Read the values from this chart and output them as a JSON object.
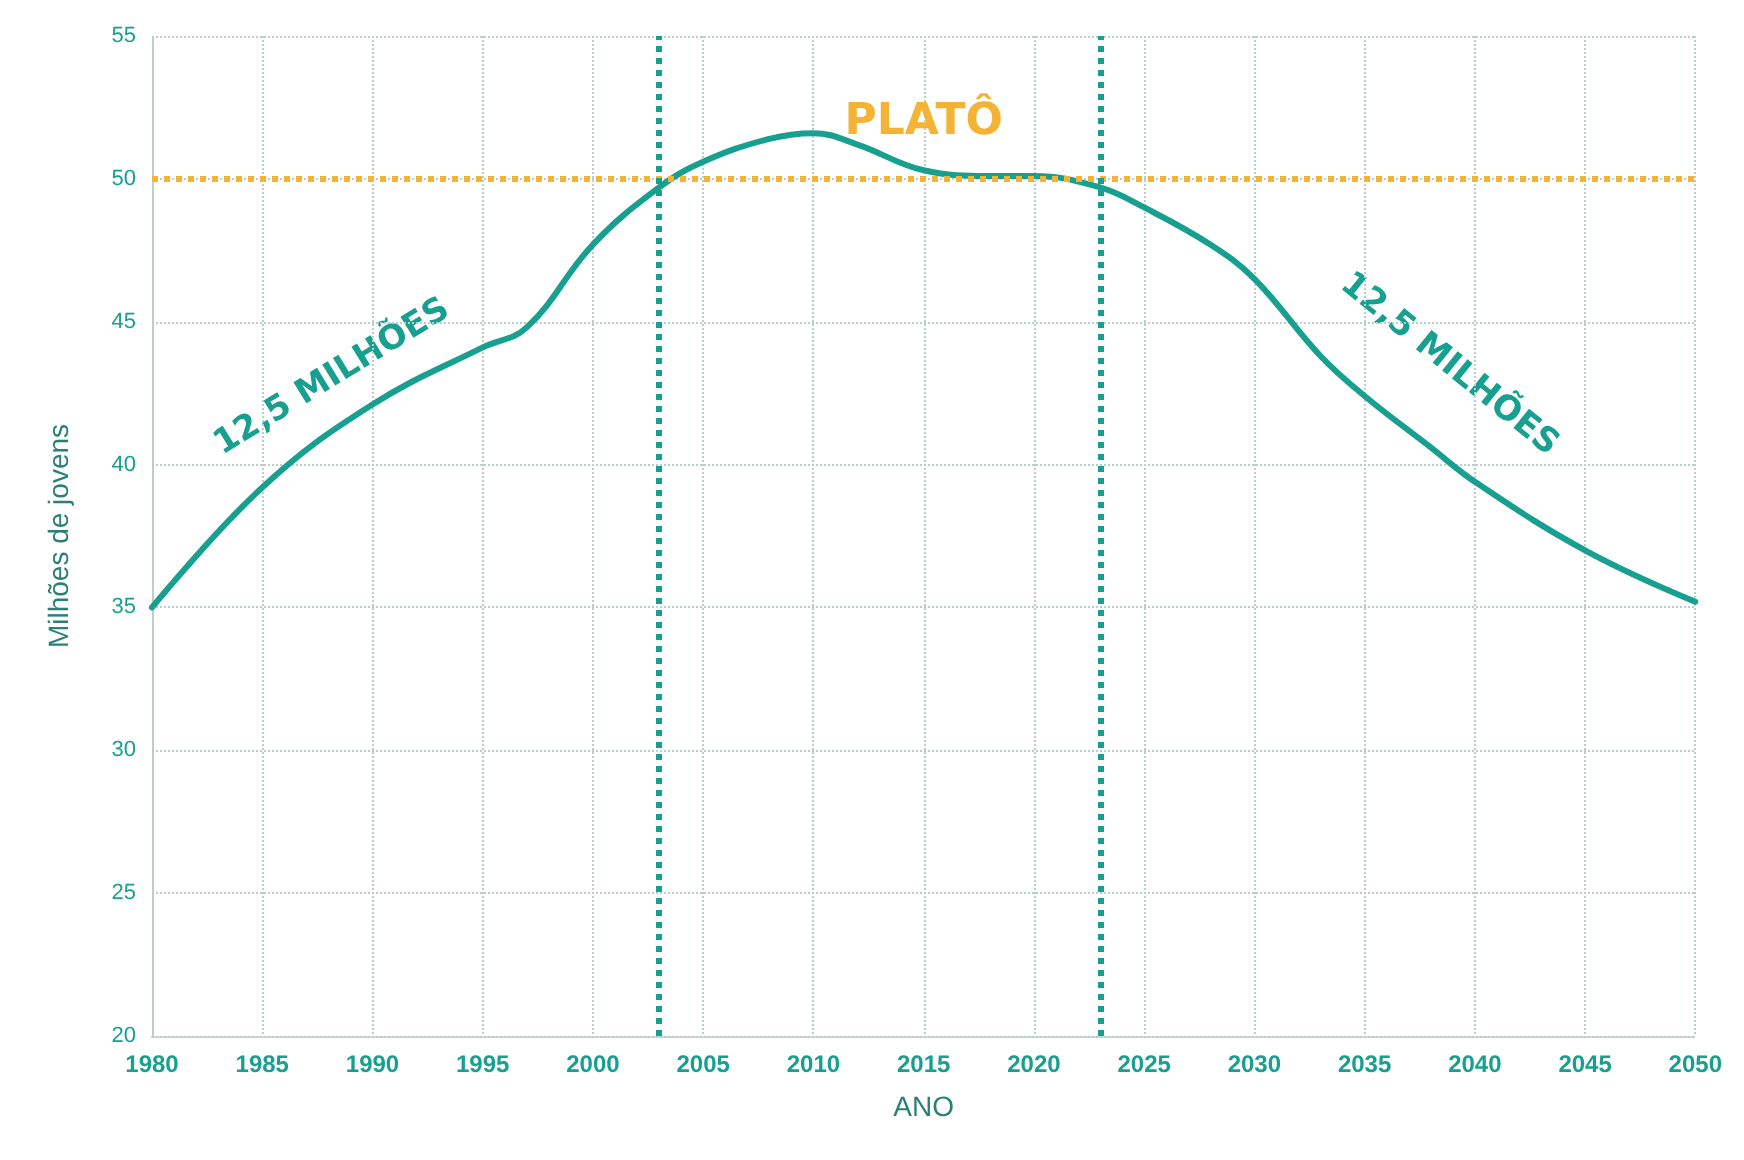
{
  "chart_data": {
    "type": "line",
    "xlabel": "ANO",
    "ylabel": "Milhões de jovens",
    "x": [
      1980,
      1985,
      1990,
      1995,
      1997,
      2000,
      2003,
      2005,
      2008,
      2010,
      2012,
      2015,
      2018,
      2020,
      2023,
      2025,
      2028,
      2030,
      2033,
      2035,
      2038,
      2040,
      2045,
      2050
    ],
    "series": [
      {
        "color": "#17a08f",
        "values": [
          35.0,
          39.2,
          42.1,
          44.1,
          44.8,
          47.7,
          49.7,
          50.6,
          51.4,
          51.6,
          51.2,
          50.3,
          50.1,
          50.1,
          49.7,
          49.0,
          47.7,
          46.5,
          43.8,
          42.4,
          40.6,
          39.4,
          37.0,
          35.2
        ]
      }
    ],
    "xlim": [
      1980,
      2050
    ],
    "xticks": [
      1980,
      1985,
      1990,
      1995,
      2000,
      2005,
      2010,
      2015,
      2020,
      2025,
      2030,
      2035,
      2040,
      2045,
      2050
    ],
    "ylim": [
      20,
      55
    ],
    "yticks": [
      20,
      25,
      30,
      35,
      40,
      45,
      50,
      55
    ],
    "ref_lines": [
      {
        "axis": "y",
        "value": 50,
        "label": "PLATÔ",
        "color": "#f5b335",
        "line_style": "dotted"
      },
      {
        "axis": "x",
        "value": 2003,
        "color": "#17a08f",
        "line_style": "dotted"
      },
      {
        "axis": "x",
        "value": 2023,
        "color": "#17a08f",
        "line_style": "dotted"
      }
    ],
    "annotations": [
      "12,5 MILHÕES",
      "12,5 MILHÕES"
    ],
    "grid": true,
    "marker": "none",
    "line_style": "solid"
  }
}
